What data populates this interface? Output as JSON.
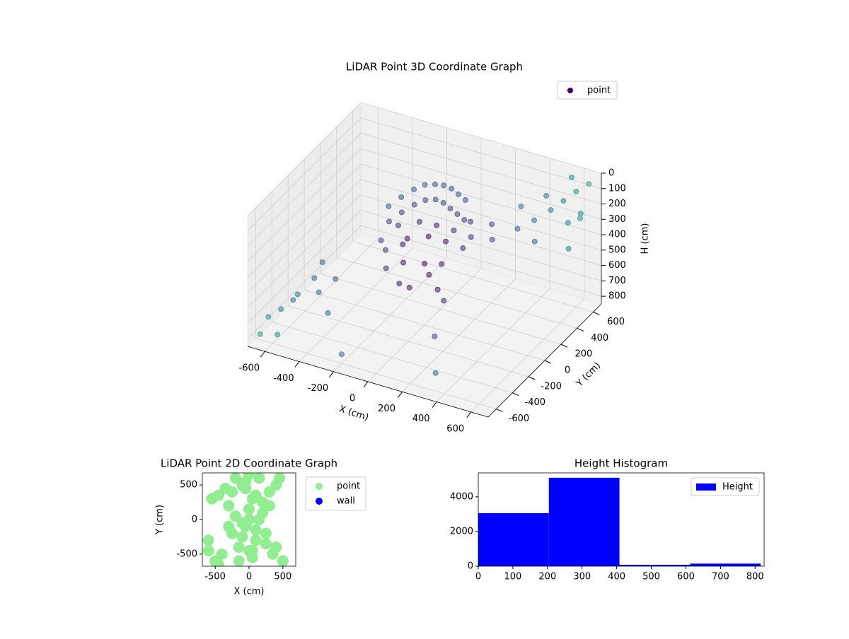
{
  "chart_data": [
    {
      "type": "scatter3d",
      "title": "LiDAR Point 3D Coordinate Graph",
      "xlabel": "X (cm)",
      "ylabel": "Y (cm)",
      "zlabel": "H (cm)",
      "legend": "upper right",
      "colormap": "viridis",
      "legend_color": "#440154",
      "series": [
        {
          "name": "point",
          "x": [
            -350,
            -300,
            -250,
            -200,
            -150,
            -100,
            -50,
            0,
            50,
            -300,
            -250,
            -200,
            -150,
            -100,
            -50,
            0,
            50,
            100,
            -200,
            -100,
            0,
            100,
            200,
            300,
            -100,
            0,
            100,
            200,
            150,
            250,
            -150,
            -100,
            0,
            50,
            100,
            -300,
            -250,
            -100,
            -50,
            100,
            150,
            -200,
            400,
            450,
            500,
            550,
            600,
            650,
            600,
            650,
            550,
            450,
            350,
            500,
            650,
            600,
            -500,
            -550,
            -600,
            -650,
            -450,
            -500,
            -400,
            -600,
            -650,
            -550,
            -350,
            200,
            300,
            -200
          ],
          "y": [
            300,
            350,
            400,
            430,
            450,
            450,
            440,
            420,
            400,
            200,
            250,
            300,
            330,
            350,
            340,
            320,
            300,
            280,
            100,
            150,
            150,
            150,
            150,
            200,
            0,
            50,
            50,
            50,
            250,
            300,
            50,
            -50,
            0,
            -50,
            0,
            100,
            50,
            -100,
            -80,
            -50,
            -80,
            -50,
            300,
            400,
            500,
            550,
            600,
            650,
            500,
            550,
            650,
            550,
            450,
            300,
            400,
            650,
            -300,
            -400,
            -500,
            -550,
            -350,
            -200,
            -250,
            -350,
            -650,
            -650,
            -450,
            -300,
            -500,
            -600
          ],
          "z": [
            350,
            300,
            260,
            230,
            220,
            210,
            210,
            220,
            230,
            380,
            330,
            290,
            260,
            250,
            250,
            260,
            270,
            280,
            320,
            290,
            280,
            280,
            290,
            300,
            320,
            300,
            300,
            310,
            260,
            270,
            400,
            450,
            450,
            480,
            420,
            450,
            470,
            560,
            580,
            560,
            600,
            520,
            250,
            230,
            200,
            150,
            100,
            60,
            250,
            200,
            50,
            150,
            200,
            300,
            350,
            300,
            550,
            620,
            680,
            720,
            600,
            500,
            550,
            700,
            780,
            750,
            650,
            700,
            800,
            790
          ]
        }
      ],
      "xlim": [
        -700,
        700
      ],
      "ylim": [
        -700,
        700
      ],
      "zlim": [
        0,
        850
      ],
      "zaxis_inverted": true,
      "xticks": [
        -600,
        -400,
        -200,
        0,
        200,
        400,
        600
      ],
      "yticks": [
        -600,
        -400,
        -200,
        0,
        200,
        400,
        600
      ],
      "zticks": [
        0,
        100,
        200,
        300,
        400,
        500,
        600,
        700,
        800
      ],
      "grid": true
    },
    {
      "type": "scatter",
      "title": "LiDAR Point 2D Coordinate Graph",
      "xlabel": "X (cm)",
      "ylabel": "Y (cm)",
      "legend": "outside right",
      "series": [
        {
          "name": "point",
          "color": "#90ee90",
          "x": [
            -600,
            -550,
            -500,
            -450,
            -400,
            -350,
            -300,
            -250,
            -200,
            -150,
            -100,
            -50,
            0,
            50,
            100,
            150,
            200,
            250,
            300,
            350,
            400,
            450,
            500,
            -200,
            -100,
            0,
            100,
            200,
            -150,
            -50,
            50,
            150,
            -250,
            250,
            0,
            -100,
            100,
            -300,
            300,
            0,
            -50,
            50,
            -450,
            400,
            -600
          ],
          "y": [
            -300,
            300,
            -600,
            350,
            -500,
            450,
            200,
            -200,
            600,
            -400,
            500,
            -100,
            650,
            300,
            -300,
            0,
            100,
            -200,
            400,
            -500,
            -400,
            600,
            -600,
            50,
            -50,
            150,
            -150,
            250,
            -600,
            550,
            -550,
            600,
            400,
            -350,
            0,
            -250,
            350,
            -100,
            200,
            -450,
            450,
            -450,
            -650,
            500,
            -450
          ]
        },
        {
          "name": "wall",
          "color": "#0000ff",
          "x": [],
          "y": []
        }
      ],
      "xlim": [
        -690,
        690
      ],
      "ylim": [
        -675,
        675
      ],
      "xticks": [
        -500,
        0,
        500
      ],
      "yticks": [
        -500,
        0,
        500
      ]
    },
    {
      "type": "histogram",
      "title": "Height Histogram",
      "legend": "upper right",
      "name": "Height",
      "color": "#0000ff",
      "bins": [
        0,
        204,
        408,
        612,
        816
      ],
      "values": [
        3060,
        5100,
        80,
        150
      ],
      "xlim": [
        0,
        826
      ],
      "ylim": [
        0,
        5380
      ],
      "xticks": [
        0,
        100,
        200,
        300,
        400,
        500,
        600,
        700,
        800
      ],
      "yticks": [
        0,
        2000,
        4000
      ]
    }
  ]
}
